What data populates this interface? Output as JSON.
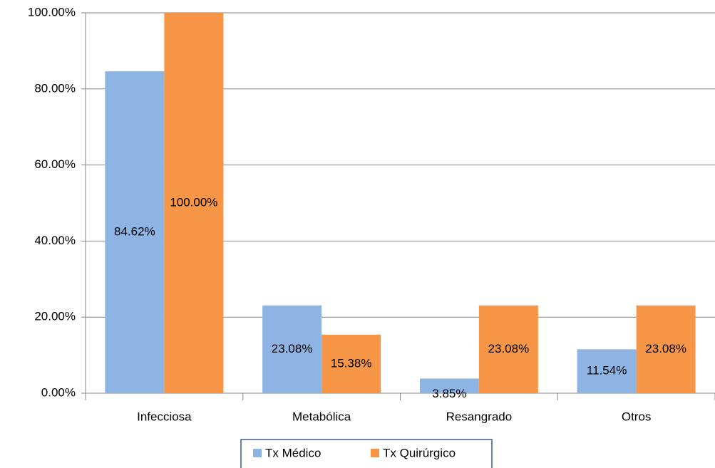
{
  "chart_data": {
    "type": "bar",
    "categories": [
      "Infecciosa",
      "Metabólica",
      "Resangrado",
      "Otros"
    ],
    "series": [
      {
        "name": "Tx Médico",
        "color": "#8eb4e3",
        "values": [
          84.62,
          23.08,
          3.85,
          11.54
        ],
        "value_labels": [
          "84.62%",
          "23.08%",
          "3.85%",
          "11.54%"
        ]
      },
      {
        "name": "Tx Quirúrgico",
        "color": "#f79646",
        "values": [
          100,
          15.38,
          23.08,
          23.08
        ],
        "value_labels": [
          "100.00%",
          "15.38%",
          "23.08%",
          "23.08%"
        ]
      }
    ],
    "ylim": [
      0,
      100
    ],
    "yticks": [
      {
        "value": 0,
        "label": "0.00%"
      },
      {
        "value": 20,
        "label": "20.00%"
      },
      {
        "value": 40,
        "label": "40.00%"
      },
      {
        "value": 60,
        "label": "60.00%"
      },
      {
        "value": 80,
        "label": "80.00%"
      },
      {
        "value": 100,
        "label": "100.00%"
      }
    ],
    "grid": true,
    "legend": "bottom"
  }
}
